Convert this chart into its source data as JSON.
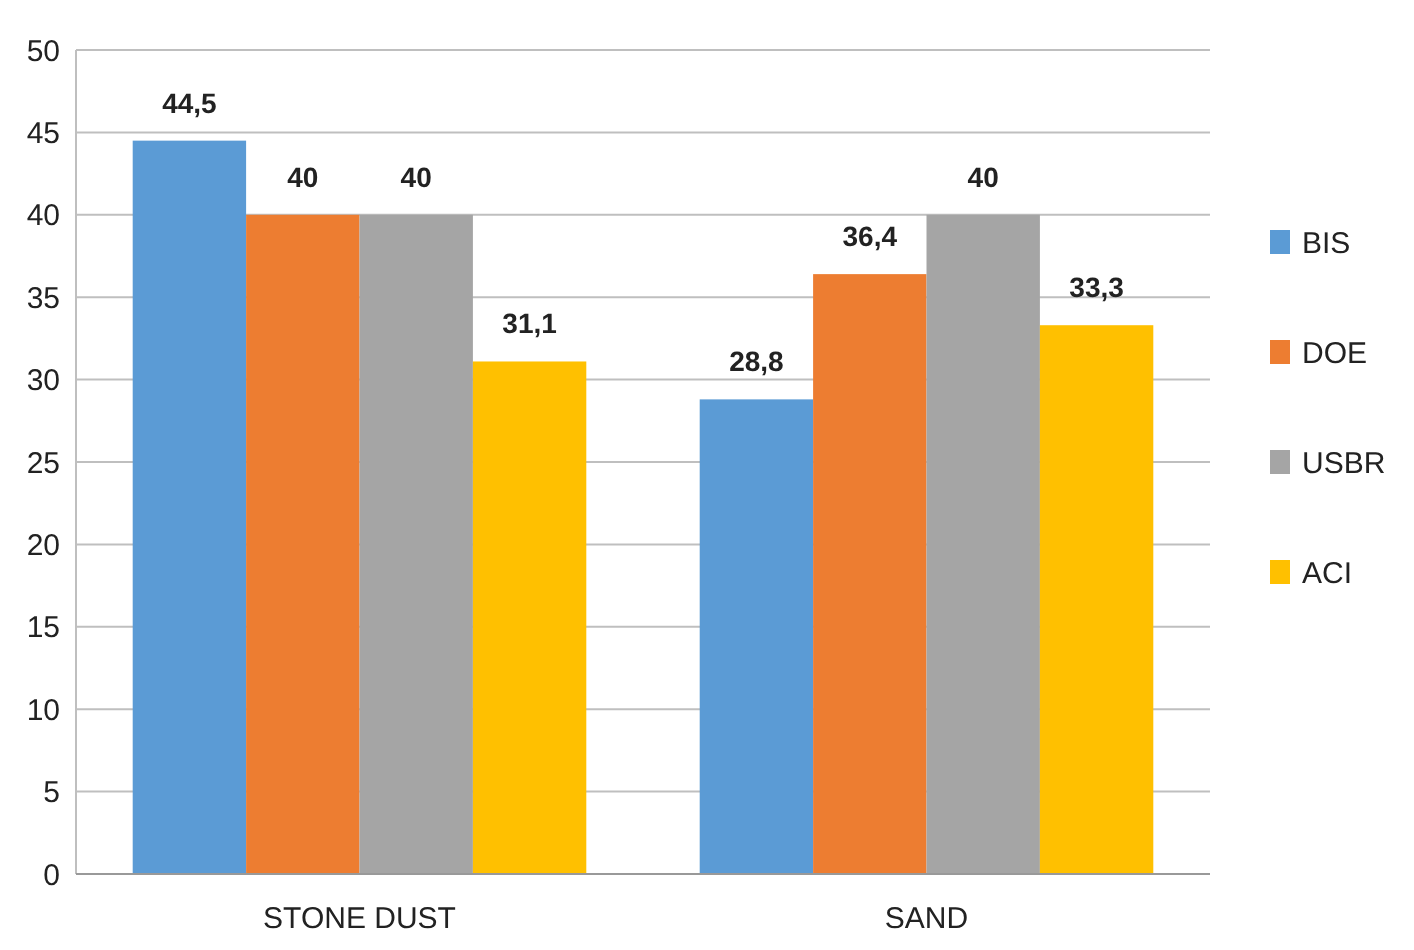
{
  "chart_data": {
    "type": "bar",
    "categories": [
      "STONE DUST",
      "SAND"
    ],
    "series": [
      {
        "name": "BIS",
        "color": "#5b9bd5",
        "values": [
          44.5,
          28.8
        ],
        "value_labels": [
          "44,5",
          "28,8"
        ]
      },
      {
        "name": "DOE",
        "color": "#ed7d31",
        "values": [
          40,
          36.4
        ],
        "value_labels": [
          "40",
          "36,4"
        ]
      },
      {
        "name": "USBR",
        "color": "#a5a5a5",
        "values": [
          40,
          40
        ],
        "value_labels": [
          "40",
          "40"
        ]
      },
      {
        "name": "ACI",
        "color": "#ffc000",
        "values": [
          31.1,
          33.3
        ],
        "value_labels": [
          "31,1",
          "33,3"
        ]
      }
    ],
    "ylim": [
      0,
      50
    ],
    "yticks": [
      0,
      5,
      10,
      15,
      20,
      25,
      30,
      35,
      40,
      45,
      50
    ],
    "grid": "y",
    "legend": "right"
  }
}
